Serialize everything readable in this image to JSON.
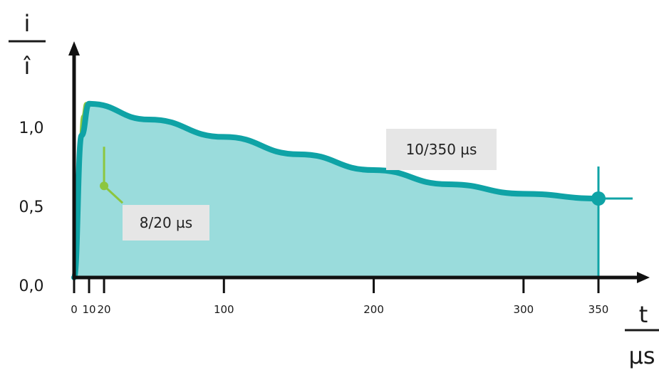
{
  "chart_data": {
    "type": "area",
    "y_axis_label": {
      "numerator": "i",
      "denominator": "î"
    },
    "x_axis_label": {
      "numerator": "t",
      "denominator": "µs"
    },
    "y_ticks": [
      "0,0",
      "0,5",
      "1,0"
    ],
    "y_tick_values": [
      0,
      0.5,
      1.0
    ],
    "x_ticks": [
      "0",
      "10",
      "20",
      "100",
      "200",
      "300",
      "350"
    ],
    "x_tick_values": [
      0,
      10,
      20,
      100,
      200,
      300,
      350
    ],
    "xlim": [
      0,
      380
    ],
    "ylim": [
      0,
      1.25
    ],
    "series": [
      {
        "name": "10/350 µs",
        "color": "#0fa3a6",
        "fill": "#9adcdc",
        "x": [
          0,
          5,
          10,
          50,
          100,
          150,
          200,
          250,
          300,
          350
        ],
        "y": [
          0,
          0.9,
          1.1,
          1.0,
          0.89,
          0.78,
          0.68,
          0.59,
          0.53,
          0.5
        ],
        "marker": {
          "x": 350,
          "y": 0.5
        }
      },
      {
        "name": "8/20 µs",
        "color": "#8cc63f",
        "fill": "#c8e29b",
        "x": [
          0,
          2,
          4,
          6,
          8,
          10,
          12,
          14,
          17,
          20
        ],
        "y": [
          0,
          0.55,
          0.85,
          1.02,
          1.1,
          1.07,
          0.98,
          0.85,
          0.7,
          0.58
        ],
        "marker": {
          "x": 20,
          "y": 0.58
        }
      }
    ],
    "annotations": [
      {
        "text": "10/350 µs",
        "series": 0
      },
      {
        "text": "8/20 µs",
        "series": 1
      }
    ],
    "box_color": "#e6e6e6"
  }
}
